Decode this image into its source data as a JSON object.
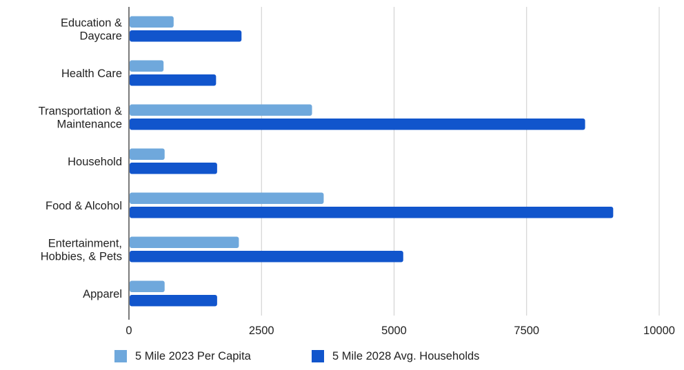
{
  "chart_data": {
    "type": "bar",
    "orientation": "horizontal",
    "title": "",
    "xlabel": "",
    "ylabel": "",
    "categories": [
      [
        "Education &",
        "Daycare"
      ],
      [
        "Health Care"
      ],
      [
        "Transportation &",
        "Maintenance"
      ],
      [
        "Household"
      ],
      [
        "Food & Alcohol"
      ],
      [
        "Entertainment,",
        "Hobbies, & Pets"
      ],
      [
        "Apparel"
      ]
    ],
    "series": [
      {
        "name": "5 Mile 2023 Per Capita",
        "color": "#6fa8dc",
        "values": [
          830,
          640,
          3440,
          660,
          3660,
          2060,
          660
        ]
      },
      {
        "name": "5 Mile 2028 Avg. Households",
        "color": "#1155cc",
        "values": [
          2110,
          1630,
          8590,
          1650,
          9120,
          5160,
          1650
        ]
      }
    ],
    "xlim": [
      0,
      10000
    ],
    "xticks": [
      "0",
      "2500",
      "5000",
      "7500",
      "10000"
    ],
    "grid": true,
    "legend_position": "bottom"
  }
}
